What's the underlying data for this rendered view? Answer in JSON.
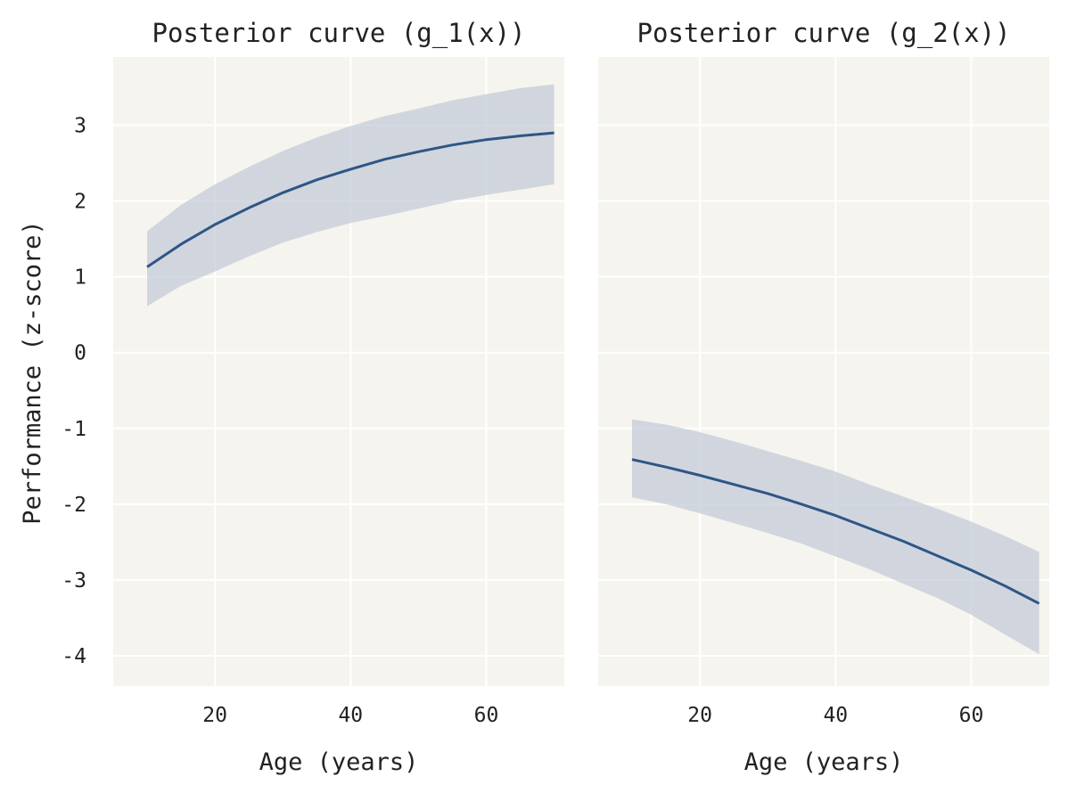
{
  "figure": {
    "ylabel": "Performance (z-score)",
    "background": "#f6f4ef",
    "grid_color": "#ffffff",
    "line_color": "#2e5686",
    "band_color": "#c4ccd8"
  },
  "chart_data": [
    {
      "type": "line",
      "title": "Posterior curve (g_1(x))",
      "xlabel": "Age (years)",
      "ylabel": "Performance (z-score)",
      "xlim": [
        5,
        71.5
      ],
      "ylim": [
        -4.4,
        3.9
      ],
      "xticks": [
        20,
        40,
        60
      ],
      "xtick_labels": [
        "20",
        "40",
        "60"
      ],
      "yticks": [
        -4,
        -3,
        -2,
        -1,
        0,
        1,
        2,
        3
      ],
      "ytick_labels": [
        "-4",
        "-3",
        "-2",
        "-1",
        "0",
        "1",
        "2",
        "3"
      ],
      "grid": true,
      "x": [
        10,
        15,
        20,
        25,
        30,
        35,
        40,
        45,
        50,
        55,
        60,
        65,
        70
      ],
      "series": [
        {
          "values": [
            1.13,
            1.43,
            1.69,
            1.91,
            2.11,
            2.28,
            2.42,
            2.55,
            2.65,
            2.74,
            2.81,
            2.86,
            2.9
          ],
          "lower": [
            0.61,
            0.88,
            1.07,
            1.27,
            1.45,
            1.59,
            1.71,
            1.8,
            1.9,
            2.0,
            2.08,
            2.15,
            2.22
          ],
          "upper": [
            1.6,
            1.95,
            2.22,
            2.45,
            2.66,
            2.84,
            2.99,
            3.12,
            3.22,
            3.33,
            3.41,
            3.49,
            3.54
          ]
        }
      ]
    },
    {
      "type": "line",
      "title": "Posterior curve (g_2(x))",
      "xlabel": "Age (years)",
      "ylabel": "",
      "xlim": [
        5,
        71.5
      ],
      "ylim": [
        -4.4,
        3.9
      ],
      "xticks": [
        20,
        40,
        60
      ],
      "xtick_labels": [
        "20",
        "40",
        "60"
      ],
      "yticks": [
        -4,
        -3,
        -2,
        -1,
        0,
        1,
        2,
        3
      ],
      "ytick_labels": [],
      "grid": true,
      "x": [
        10,
        15,
        20,
        25,
        30,
        35,
        40,
        45,
        50,
        55,
        60,
        65,
        70
      ],
      "series": [
        {
          "values": [
            -1.41,
            -1.51,
            -1.62,
            -1.74,
            -1.86,
            -2.0,
            -2.15,
            -2.32,
            -2.49,
            -2.68,
            -2.87,
            -3.08,
            -3.31
          ],
          "lower": [
            -1.91,
            -2.0,
            -2.12,
            -2.25,
            -2.38,
            -2.52,
            -2.69,
            -2.86,
            -3.05,
            -3.24,
            -3.46,
            -3.72,
            -3.98
          ],
          "upper": [
            -0.88,
            -0.95,
            -1.05,
            -1.17,
            -1.3,
            -1.43,
            -1.57,
            -1.74,
            -1.9,
            -2.06,
            -2.23,
            -2.42,
            -2.63
          ]
        }
      ]
    }
  ]
}
